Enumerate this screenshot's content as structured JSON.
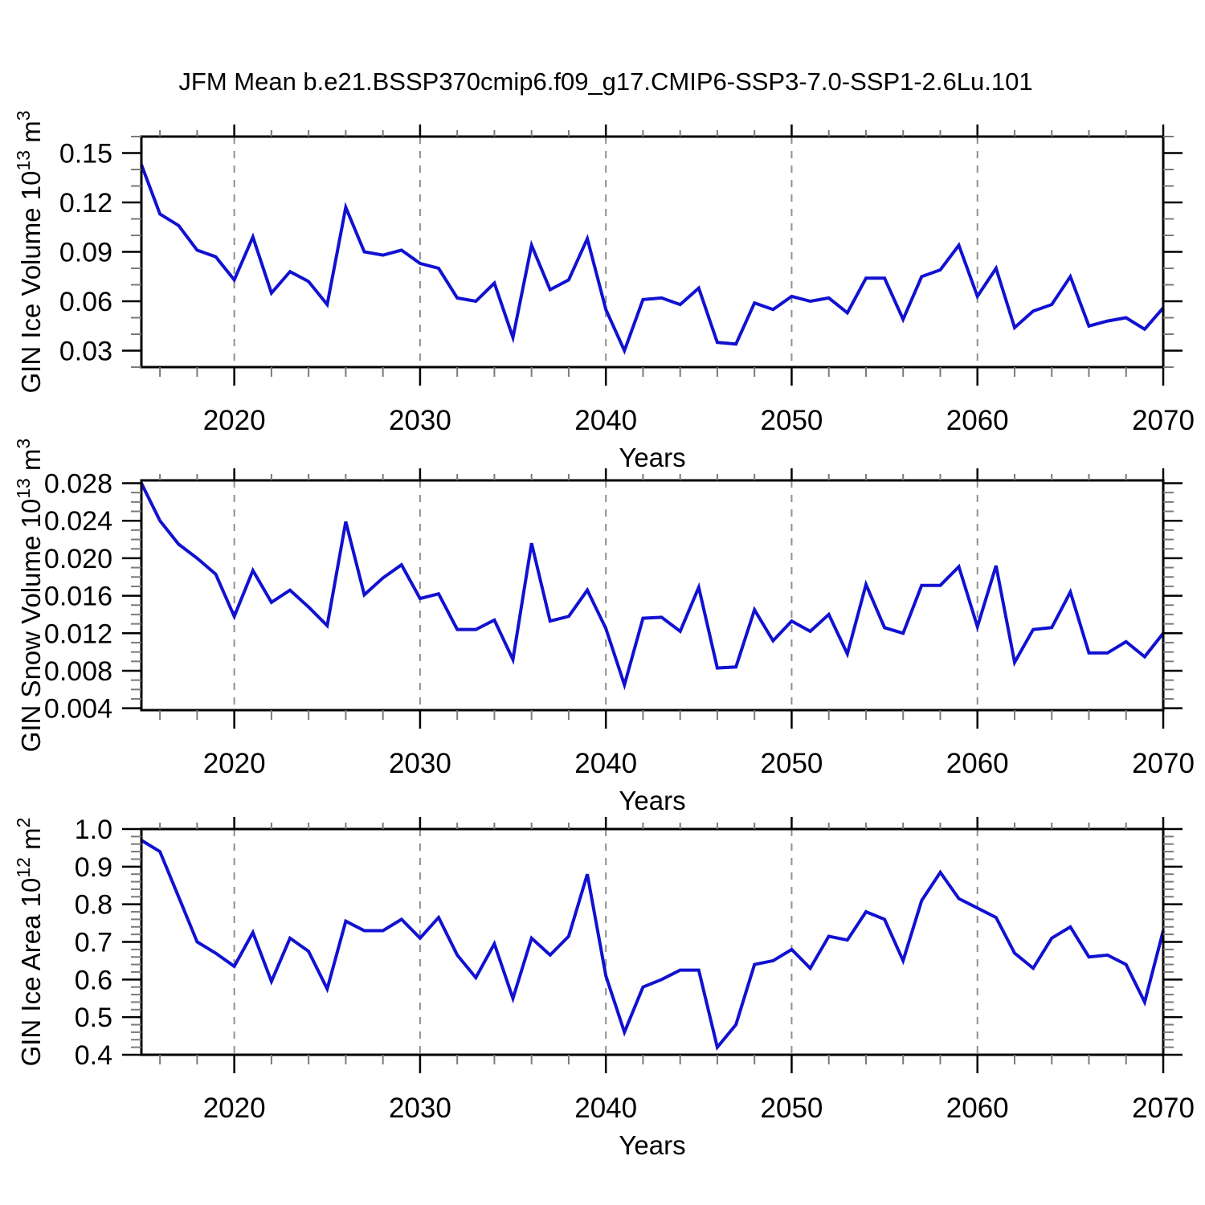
{
  "title": "JFM Mean b.e21.BSSP370cmip6.f09_g17.CMIP6-SSP3-7.0-SSP1-2.6Lu.101",
  "style": {
    "line_color": "#1111d1",
    "grid_color": "#909090",
    "axis_color": "#000000",
    "minor_tick_color": "#7a7a7a"
  },
  "chart_data": {
    "type": "line",
    "title": "JFM Mean b.e21.BSSP370cmip6.f09_g17.CMIP6-SSP3-7.0-SSP1-2.6Lu.101",
    "x_label": "Years",
    "x_range": [
      2015,
      2070
    ],
    "x_years": [
      2015,
      2016,
      2017,
      2018,
      2019,
      2020,
      2021,
      2022,
      2023,
      2024,
      2025,
      2026,
      2027,
      2028,
      2029,
      2030,
      2031,
      2032,
      2033,
      2034,
      2035,
      2036,
      2037,
      2038,
      2039,
      2040,
      2041,
      2042,
      2043,
      2044,
      2045,
      2046,
      2047,
      2048,
      2049,
      2050,
      2051,
      2052,
      2053,
      2054,
      2055,
      2056,
      2057,
      2058,
      2059,
      2060,
      2061,
      2062,
      2063,
      2064,
      2065,
      2066,
      2067,
      2068,
      2069,
      2070
    ],
    "x_ticks": {
      "values": [
        2020,
        2030,
        2040,
        2050,
        2060,
        2070
      ],
      "labels": [
        "2020",
        "2030",
        "2040",
        "2050",
        "2060",
        "2070"
      ],
      "minor_step_years": 2,
      "gridline_years": [
        2020,
        2030,
        2040,
        2050,
        2060
      ]
    },
    "legend": "none",
    "grid": "dashed vertical at decades",
    "panels": [
      {
        "id": "ice-volume",
        "y_label": {
          "prefix": "GIN Ice Volume 10",
          "exp": "13",
          "unit": " m",
          "unit_exp": "3"
        },
        "y_label_plain": "GIN Ice Volume 10^13 m^3",
        "y_range": [
          0.02,
          0.16
        ],
        "y_tick_values": [
          0.03,
          0.06,
          0.09,
          0.12,
          0.15
        ],
        "y_tick_labels": [
          "0.03",
          "0.06",
          "0.09",
          "0.12",
          "0.15"
        ],
        "y_minor_step": 0.01,
        "values": [
          0.143,
          0.113,
          0.106,
          0.091,
          0.087,
          0.073,
          0.099,
          0.065,
          0.078,
          0.072,
          0.058,
          0.117,
          0.09,
          0.088,
          0.091,
          0.083,
          0.08,
          0.062,
          0.06,
          0.071,
          0.038,
          0.094,
          0.067,
          0.073,
          0.098,
          0.055,
          0.03,
          0.061,
          0.062,
          0.058,
          0.068,
          0.035,
          0.034,
          0.059,
          0.055,
          0.063,
          0.06,
          0.062,
          0.053,
          0.074,
          0.074,
          0.049,
          0.075,
          0.079,
          0.094,
          0.063,
          0.08,
          0.044,
          0.054,
          0.058,
          0.075,
          0.045,
          0.048,
          0.05,
          0.043,
          0.056
        ]
      },
      {
        "id": "snow-volume",
        "y_label": {
          "prefix": "GIN Snow Volume 10",
          "exp": "13",
          "unit": " m",
          "unit_exp": "3"
        },
        "y_label_plain": "GIN Snow Volume 10^13 m^3",
        "y_range": [
          0.0038,
          0.0283
        ],
        "y_tick_values": [
          0.004,
          0.008,
          0.012,
          0.016,
          0.02,
          0.024,
          0.028
        ],
        "y_tick_labels": [
          "0.004",
          "0.008",
          "0.012",
          "0.016",
          "0.020",
          "0.024",
          "0.028"
        ],
        "y_minor_step": 0.001,
        "values": [
          0.028,
          0.024,
          0.0215,
          0.02,
          0.0183,
          0.0138,
          0.0187,
          0.0153,
          0.0166,
          0.0148,
          0.0128,
          0.0239,
          0.0161,
          0.0179,
          0.0193,
          0.0157,
          0.0162,
          0.0124,
          0.0124,
          0.0134,
          0.0092,
          0.0216,
          0.0133,
          0.0138,
          0.0166,
          0.0125,
          0.0065,
          0.0136,
          0.0137,
          0.0122,
          0.0169,
          0.0083,
          0.0084,
          0.0145,
          0.0112,
          0.0133,
          0.0122,
          0.014,
          0.0098,
          0.0172,
          0.0126,
          0.012,
          0.0171,
          0.0171,
          0.0191,
          0.0127,
          0.0192,
          0.0089,
          0.0124,
          0.0126,
          0.0164,
          0.0099,
          0.0099,
          0.0111,
          0.0095,
          0.012
        ]
      },
      {
        "id": "ice-area",
        "y_label": {
          "prefix": "GIN Ice Area 10",
          "exp": "12",
          "unit": " m",
          "unit_exp": "2"
        },
        "y_label_plain": "GIN Ice Area 10^12 m^2",
        "y_range": [
          0.4,
          1.0
        ],
        "y_tick_values": [
          0.4,
          0.5,
          0.6,
          0.7,
          0.8,
          0.9,
          1.0
        ],
        "y_tick_labels": [
          "0.4",
          "0.5",
          "0.6",
          "0.7",
          "0.8",
          "0.9",
          "1.0"
        ],
        "y_minor_step": 0.02,
        "values": [
          0.97,
          0.94,
          0.82,
          0.7,
          0.67,
          0.635,
          0.725,
          0.595,
          0.71,
          0.675,
          0.575,
          0.755,
          0.73,
          0.73,
          0.76,
          0.71,
          0.765,
          0.665,
          0.605,
          0.695,
          0.55,
          0.71,
          0.665,
          0.715,
          0.88,
          0.61,
          0.46,
          0.58,
          0.6,
          0.625,
          0.625,
          0.42,
          0.48,
          0.64,
          0.65,
          0.68,
          0.63,
          0.715,
          0.705,
          0.78,
          0.76,
          0.65,
          0.81,
          0.885,
          0.815,
          0.79,
          0.765,
          0.67,
          0.63,
          0.71,
          0.74,
          0.66,
          0.665,
          0.64,
          0.54,
          0.73
        ]
      }
    ]
  }
}
